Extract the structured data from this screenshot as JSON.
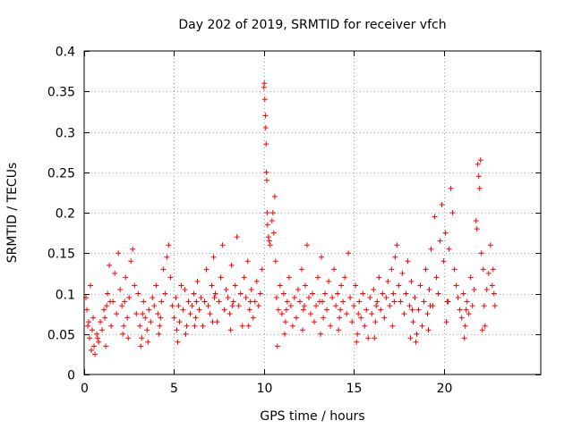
{
  "chart_data": {
    "type": "scatter",
    "title": "Day 202 of 2019, SRMTID for receiver vfch",
    "xlabel": "GPS time / hours",
    "ylabel": "SRMTID / TECUs",
    "xlim": [
      0,
      25.4
    ],
    "ylim": [
      0,
      0.4
    ],
    "x_ticks": [
      0,
      5,
      10,
      15,
      20
    ],
    "x_tick_labels": [
      "0",
      "5",
      "10",
      "15",
      "20"
    ],
    "y_ticks": [
      0,
      0.05,
      0.1,
      0.15,
      0.2,
      0.25,
      0.3,
      0.35,
      0.4
    ],
    "y_tick_labels": [
      "0",
      "0.05",
      "0.1",
      "0.15",
      "0.2",
      "0.25",
      "0.3",
      "0.35",
      "0.4"
    ],
    "grid": true,
    "marker": "plus",
    "series_color": "#ff0000",
    "series": [
      {
        "name": "vfch",
        "points": [
          [
            0.1,
            0.095
          ],
          [
            0.2,
            0.06
          ],
          [
            0.3,
            0.045
          ],
          [
            0.35,
            0.11
          ],
          [
            0.4,
            0.03
          ],
          [
            0.5,
            0.07
          ],
          [
            0.6,
            0.025
          ],
          [
            0.7,
            0.05
          ],
          [
            0.8,
            0.04
          ],
          [
            0.9,
            0.065
          ],
          [
            1.0,
            0.055
          ],
          [
            1.1,
            0.08
          ],
          [
            1.2,
            0.035
          ],
          [
            1.3,
            0.1
          ],
          [
            1.4,
            0.135
          ],
          [
            1.5,
            0.06
          ],
          [
            1.6,
            0.09
          ],
          [
            1.7,
            0.125
          ],
          [
            1.8,
            0.075
          ],
          [
            1.9,
            0.15
          ],
          [
            2.0,
            0.105
          ],
          [
            2.1,
            0.085
          ],
          [
            2.2,
            0.06
          ],
          [
            2.3,
            0.12
          ],
          [
            2.4,
            0.07
          ],
          [
            2.5,
            0.095
          ],
          [
            2.6,
            0.14
          ],
          [
            2.7,
            0.155
          ],
          [
            2.8,
            0.11
          ],
          [
            2.9,
            0.075
          ],
          [
            3.0,
            0.1
          ],
          [
            3.1,
            0.06
          ],
          [
            3.2,
            0.045
          ],
          [
            3.3,
            0.09
          ],
          [
            3.4,
            0.07
          ],
          [
            3.5,
            0.055
          ],
          [
            3.6,
            0.08
          ],
          [
            3.7,
            0.065
          ],
          [
            3.8,
            0.095
          ],
          [
            3.9,
            0.085
          ],
          [
            4.0,
            0.11
          ],
          [
            4.1,
            0.075
          ],
          [
            4.2,
            0.06
          ],
          [
            4.3,
            0.09
          ],
          [
            4.4,
            0.13
          ],
          [
            4.5,
            0.1
          ],
          [
            4.6,
            0.145
          ],
          [
            4.7,
            0.16
          ],
          [
            4.8,
            0.12
          ],
          [
            4.9,
            0.085
          ],
          [
            5.0,
            0.07
          ],
          [
            5.1,
            0.095
          ],
          [
            5.2,
            0.04
          ],
          [
            5.3,
            0.065
          ],
          [
            5.4,
            0.11
          ],
          [
            5.5,
            0.08
          ],
          [
            5.6,
            0.105
          ],
          [
            5.7,
            0.06
          ],
          [
            5.8,
            0.09
          ],
          [
            5.9,
            0.075
          ],
          [
            6.0,
            0.085
          ],
          [
            6.1,
            0.1
          ],
          [
            6.2,
            0.07
          ],
          [
            6.3,
            0.115
          ],
          [
            6.4,
            0.08
          ],
          [
            6.5,
            0.095
          ],
          [
            6.6,
            0.06
          ],
          [
            6.7,
            0.09
          ],
          [
            6.8,
            0.13
          ],
          [
            6.9,
            0.085
          ],
          [
            7.0,
            0.075
          ],
          [
            7.1,
            0.11
          ],
          [
            7.2,
            0.145
          ],
          [
            7.3,
            0.1
          ],
          [
            7.4,
            0.065
          ],
          [
            7.5,
            0.09
          ],
          [
            7.6,
            0.12
          ],
          [
            7.7,
            0.16
          ],
          [
            7.8,
            0.08
          ],
          [
            7.9,
            0.105
          ],
          [
            8.0,
            0.095
          ],
          [
            8.1,
            0.075
          ],
          [
            8.2,
            0.135
          ],
          [
            8.3,
            0.09
          ],
          [
            8.4,
            0.11
          ],
          [
            8.5,
            0.17
          ],
          [
            8.6,
            0.085
          ],
          [
            8.7,
            0.1
          ],
          [
            8.8,
            0.06
          ],
          [
            8.9,
            0.12
          ],
          [
            9.0,
            0.095
          ],
          [
            9.1,
            0.14
          ],
          [
            9.2,
            0.08
          ],
          [
            9.3,
            0.105
          ],
          [
            9.4,
            0.07
          ],
          [
            9.5,
            0.09
          ],
          [
            9.6,
            0.115
          ],
          [
            9.7,
            0.085
          ],
          [
            9.8,
            0.1
          ],
          [
            9.9,
            0.13
          ],
          [
            10.0,
            0.355
          ],
          [
            10.02,
            0.36
          ],
          [
            10.05,
            0.34
          ],
          [
            10.08,
            0.32
          ],
          [
            10.1,
            0.305
          ],
          [
            10.12,
            0.285
          ],
          [
            10.14,
            0.25
          ],
          [
            10.16,
            0.24
          ],
          [
            10.18,
            0.2
          ],
          [
            10.2,
            0.185
          ],
          [
            10.25,
            0.17
          ],
          [
            10.3,
            0.165
          ],
          [
            10.35,
            0.16
          ],
          [
            10.45,
            0.19
          ],
          [
            10.5,
            0.2
          ],
          [
            10.55,
            0.175
          ],
          [
            10.6,
            0.22
          ],
          [
            10.65,
            0.14
          ],
          [
            10.7,
            0.095
          ],
          [
            10.8,
            0.08
          ],
          [
            10.9,
            0.11
          ],
          [
            11.0,
            0.075
          ],
          [
            11.1,
            0.1
          ],
          [
            11.2,
            0.065
          ],
          [
            11.3,
            0.09
          ],
          [
            11.4,
            0.12
          ],
          [
            11.5,
            0.085
          ],
          [
            11.6,
            0.06
          ],
          [
            11.7,
            0.095
          ],
          [
            11.8,
            0.07
          ],
          [
            11.9,
            0.105
          ],
          [
            12.0,
            0.09
          ],
          [
            12.1,
            0.13
          ],
          [
            12.2,
            0.08
          ],
          [
            12.3,
            0.11
          ],
          [
            12.4,
            0.16
          ],
          [
            12.5,
            0.095
          ],
          [
            12.6,
            0.075
          ],
          [
            12.7,
            0.1
          ],
          [
            12.8,
            0.065
          ],
          [
            12.9,
            0.085
          ],
          [
            13.0,
            0.12
          ],
          [
            13.1,
            0.09
          ],
          [
            13.2,
            0.145
          ],
          [
            13.3,
            0.07
          ],
          [
            13.4,
            0.1
          ],
          [
            13.5,
            0.08
          ],
          [
            13.6,
            0.115
          ],
          [
            13.7,
            0.06
          ],
          [
            13.8,
            0.095
          ],
          [
            13.9,
            0.13
          ],
          [
            14.0,
            0.085
          ],
          [
            14.1,
            0.1
          ],
          [
            14.2,
            0.07
          ],
          [
            14.3,
            0.11
          ],
          [
            14.4,
            0.09
          ],
          [
            14.5,
            0.12
          ],
          [
            14.6,
            0.075
          ],
          [
            14.7,
            0.15
          ],
          [
            14.8,
            0.095
          ],
          [
            14.9,
            0.065
          ],
          [
            15.0,
            0.085
          ],
          [
            15.1,
            0.11
          ],
          [
            15.2,
            0.05
          ],
          [
            15.3,
            0.09
          ],
          [
            15.4,
            0.07
          ],
          [
            15.5,
            0.1
          ],
          [
            15.6,
            0.06
          ],
          [
            15.7,
            0.08
          ],
          [
            15.8,
            0.045
          ],
          [
            15.9,
            0.095
          ],
          [
            16.0,
            0.075
          ],
          [
            16.1,
            0.105
          ],
          [
            16.2,
            0.065
          ],
          [
            16.3,
            0.09
          ],
          [
            16.4,
            0.12
          ],
          [
            16.5,
            0.08
          ],
          [
            16.6,
            0.1
          ],
          [
            16.7,
            0.07
          ],
          [
            16.8,
            0.095
          ],
          [
            16.9,
            0.115
          ],
          [
            17.0,
            0.085
          ],
          [
            17.1,
            0.13
          ],
          [
            17.2,
            0.1
          ],
          [
            17.3,
            0.145
          ],
          [
            17.4,
            0.16
          ],
          [
            17.5,
            0.11
          ],
          [
            17.6,
            0.09
          ],
          [
            17.7,
            0.125
          ],
          [
            17.8,
            0.075
          ],
          [
            17.9,
            0.1
          ],
          [
            18.0,
            0.14
          ],
          [
            18.1,
            0.085
          ],
          [
            18.2,
            0.115
          ],
          [
            18.3,
            0.065
          ],
          [
            18.4,
            0.095
          ],
          [
            18.5,
            0.05
          ],
          [
            18.6,
            0.08
          ],
          [
            18.7,
            0.11
          ],
          [
            18.8,
            0.06
          ],
          [
            18.9,
            0.09
          ],
          [
            19.0,
            0.13
          ],
          [
            19.1,
            0.075
          ],
          [
            19.2,
            0.105
          ],
          [
            19.3,
            0.155
          ],
          [
            19.4,
            0.085
          ],
          [
            19.5,
            0.195
          ],
          [
            19.6,
            0.12
          ],
          [
            19.7,
            0.1
          ],
          [
            19.8,
            0.165
          ],
          [
            19.9,
            0.21
          ],
          [
            20.0,
            0.14
          ],
          [
            20.1,
            0.175
          ],
          [
            20.2,
            0.09
          ],
          [
            20.3,
            0.155
          ],
          [
            20.4,
            0.23
          ],
          [
            20.5,
            0.2
          ],
          [
            20.6,
            0.13
          ],
          [
            20.7,
            0.11
          ],
          [
            20.8,
            0.095
          ],
          [
            20.9,
            0.08
          ],
          [
            21.0,
            0.07
          ],
          [
            21.1,
            0.1
          ],
          [
            21.2,
            0.06
          ],
          [
            21.3,
            0.09
          ],
          [
            21.4,
            0.075
          ],
          [
            21.5,
            0.12
          ],
          [
            21.6,
            0.085
          ],
          [
            21.7,
            0.105
          ],
          [
            21.8,
            0.19
          ],
          [
            21.85,
            0.18
          ],
          [
            21.9,
            0.26
          ],
          [
            21.95,
            0.245
          ],
          [
            22.0,
            0.23
          ],
          [
            22.05,
            0.265
          ],
          [
            22.1,
            0.15
          ],
          [
            22.2,
            0.13
          ],
          [
            22.3,
            0.06
          ],
          [
            22.4,
            0.105
          ],
          [
            22.5,
            0.125
          ],
          [
            22.6,
            0.16
          ],
          [
            22.7,
            0.11
          ],
          [
            22.75,
            0.13
          ],
          [
            22.8,
            0.1
          ],
          [
            22.85,
            0.085
          ],
          [
            0.25,
            0.065
          ],
          [
            0.55,
            0.035
          ],
          [
            0.75,
            0.045
          ],
          [
            1.15,
            0.07
          ],
          [
            1.45,
            0.09
          ],
          [
            2.15,
            0.05
          ],
          [
            2.45,
            0.045
          ],
          [
            3.15,
            0.035
          ],
          [
            3.55,
            0.04
          ],
          [
            4.15,
            0.05
          ],
          [
            5.15,
            0.055
          ],
          [
            5.65,
            0.05
          ],
          [
            6.15,
            0.06
          ],
          [
            7.15,
            0.065
          ],
          [
            8.15,
            0.055
          ],
          [
            9.15,
            0.06
          ],
          [
            10.75,
            0.035
          ],
          [
            11.15,
            0.05
          ],
          [
            12.15,
            0.055
          ],
          [
            13.15,
            0.05
          ],
          [
            14.15,
            0.055
          ],
          [
            15.15,
            0.04
          ],
          [
            16.15,
            0.045
          ],
          [
            17.15,
            0.06
          ],
          [
            18.15,
            0.045
          ],
          [
            18.45,
            0.04
          ],
          [
            19.15,
            0.055
          ],
          [
            20.15,
            0.065
          ],
          [
            21.15,
            0.045
          ],
          [
            22.15,
            0.055
          ],
          [
            0.15,
            0.08
          ],
          [
            0.45,
            0.055
          ],
          [
            1.25,
            0.085
          ],
          [
            2.25,
            0.09
          ],
          [
            3.25,
            0.075
          ],
          [
            4.25,
            0.07
          ],
          [
            5.25,
            0.085
          ],
          [
            6.25,
            0.09
          ],
          [
            7.25,
            0.095
          ],
          [
            8.25,
            0.085
          ],
          [
            9.25,
            0.09
          ],
          [
            11.25,
            0.08
          ],
          [
            12.25,
            0.085
          ],
          [
            13.25,
            0.09
          ],
          [
            14.25,
            0.08
          ],
          [
            15.25,
            0.075
          ],
          [
            16.25,
            0.085
          ],
          [
            17.25,
            0.09
          ],
          [
            18.25,
            0.08
          ],
          [
            19.25,
            0.085
          ],
          [
            20.25,
            0.09
          ],
          [
            21.25,
            0.08
          ],
          [
            22.25,
            0.085
          ]
        ]
      }
    ]
  }
}
